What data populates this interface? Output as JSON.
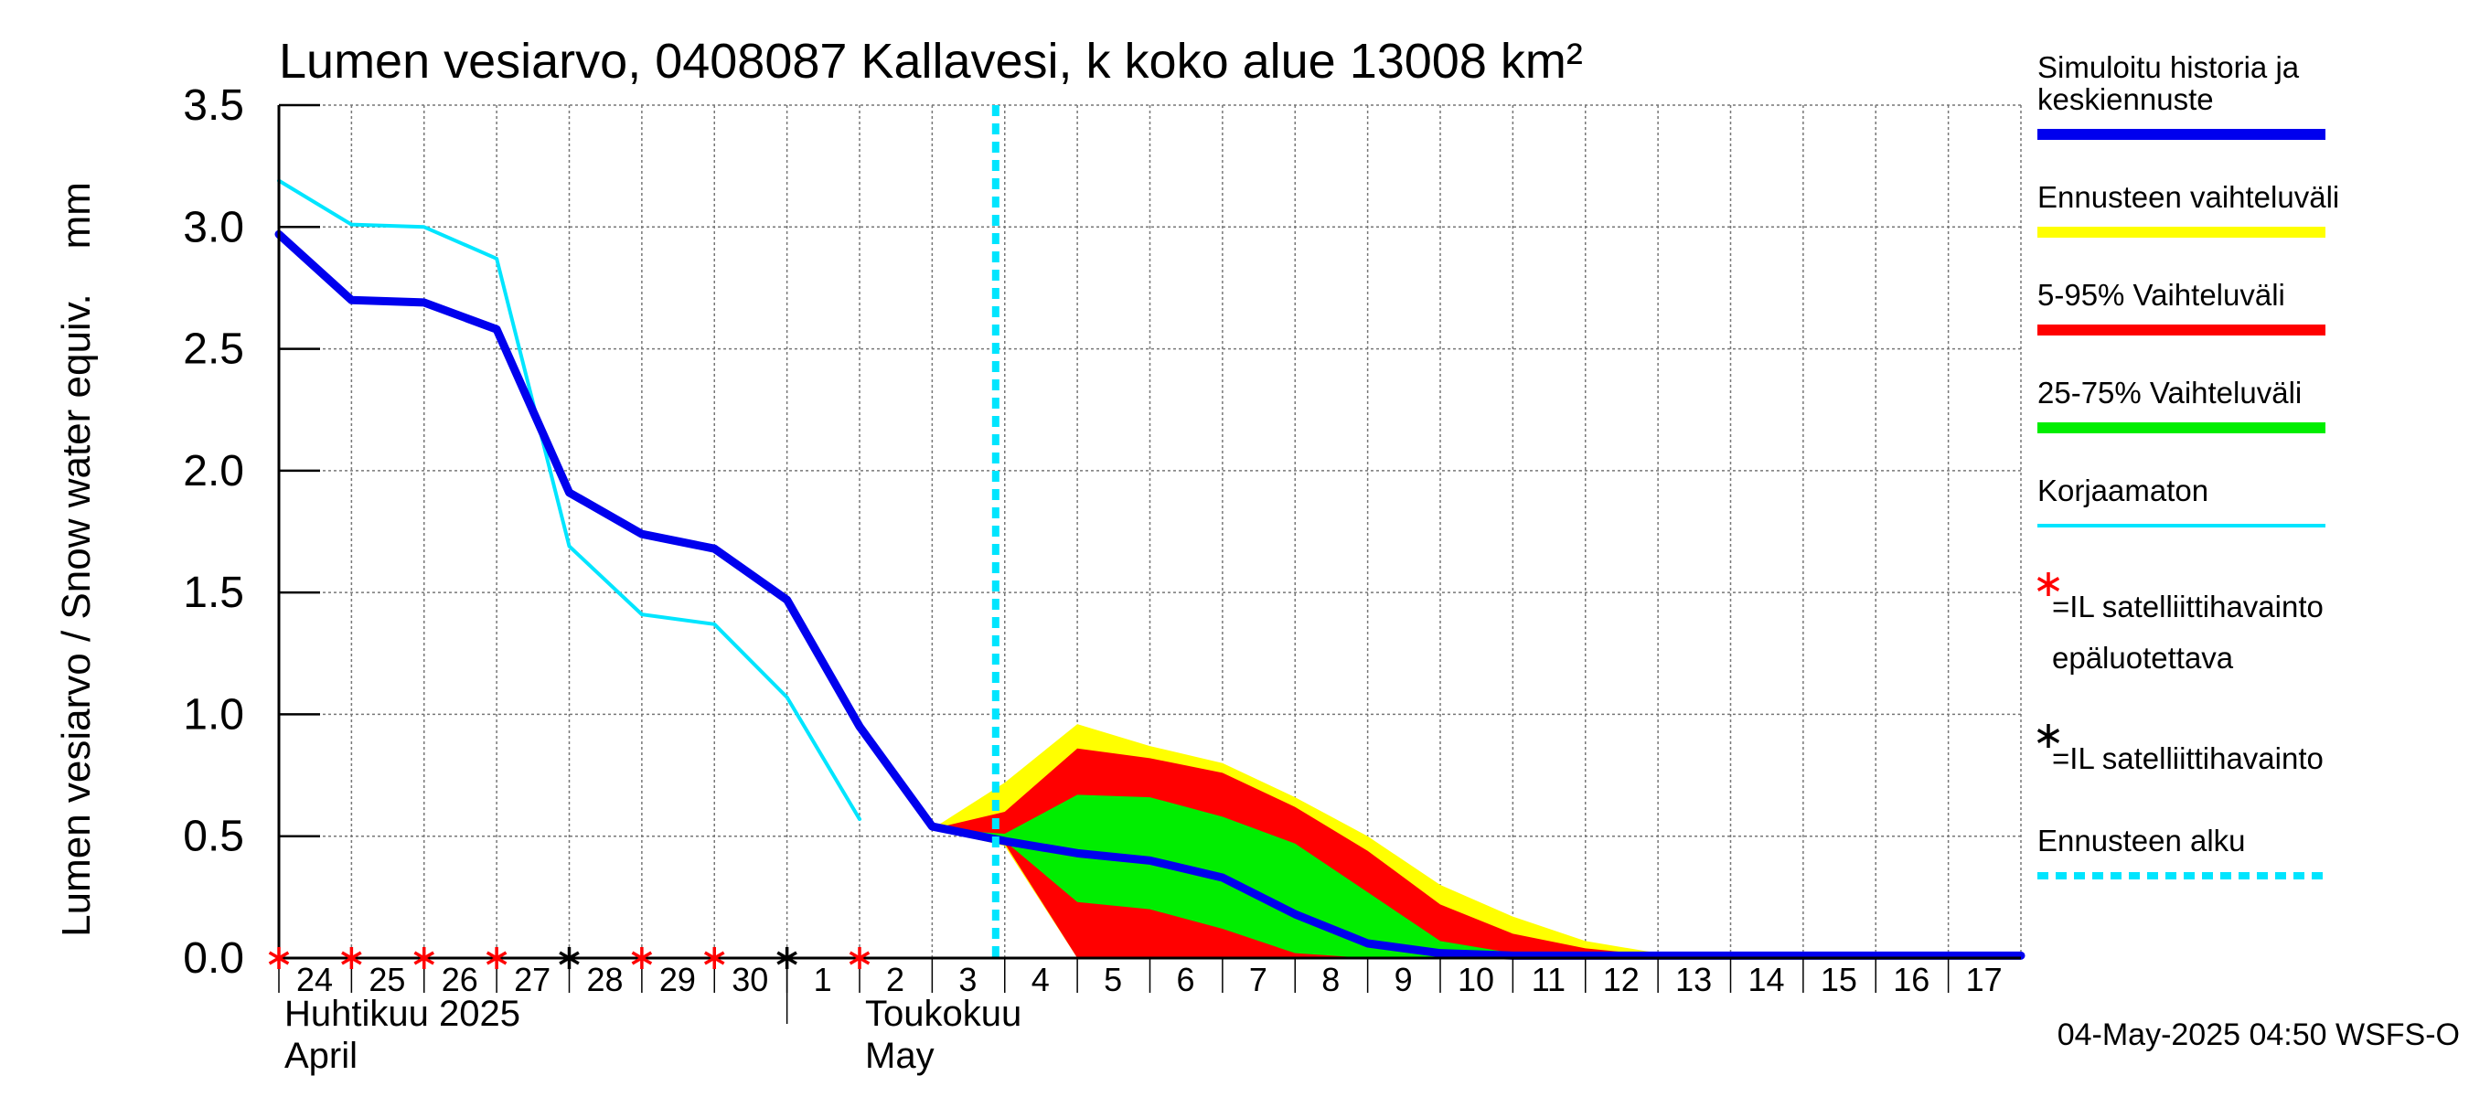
{
  "chart_data": {
    "type": "area",
    "title": "Lumen vesiarvo, 0408087 Kallavesi, k koko alue 13008 km²",
    "ylabel": "Lumen vesiarvo / Snow water equiv.    mm",
    "ylim": [
      0,
      3.5
    ],
    "yticks": [
      "0.0",
      "0.5",
      "1.0",
      "1.5",
      "2.0",
      "2.5",
      "3.0",
      "3.5"
    ],
    "x_range": [
      "2025-04-24",
      "2025-05-18"
    ],
    "x_ticks": [
      {
        "date": "2025-04-24",
        "label": "24"
      },
      {
        "date": "2025-04-25",
        "label": "25"
      },
      {
        "date": "2025-04-26",
        "label": "26"
      },
      {
        "date": "2025-04-27",
        "label": "27"
      },
      {
        "date": "2025-04-28",
        "label": "28"
      },
      {
        "date": "2025-04-29",
        "label": "29"
      },
      {
        "date": "2025-04-30",
        "label": "30"
      },
      {
        "date": "2025-05-01",
        "label": "1"
      },
      {
        "date": "2025-05-02",
        "label": "2"
      },
      {
        "date": "2025-05-03",
        "label": "3"
      },
      {
        "date": "2025-05-04",
        "label": "4"
      },
      {
        "date": "2025-05-05",
        "label": "5"
      },
      {
        "date": "2025-05-06",
        "label": "6"
      },
      {
        "date": "2025-05-07",
        "label": "7"
      },
      {
        "date": "2025-05-08",
        "label": "8"
      },
      {
        "date": "2025-05-09",
        "label": "9"
      },
      {
        "date": "2025-05-10",
        "label": "10"
      },
      {
        "date": "2025-05-11",
        "label": "11"
      },
      {
        "date": "2025-05-12",
        "label": "12"
      },
      {
        "date": "2025-05-13",
        "label": "13"
      },
      {
        "date": "2025-05-14",
        "label": "14"
      },
      {
        "date": "2025-05-15",
        "label": "15"
      },
      {
        "date": "2025-05-16",
        "label": "16"
      },
      {
        "date": "2025-05-17",
        "label": "17"
      }
    ],
    "month_labels": [
      {
        "date": "2025-04-24",
        "line1": "Huhtikuu  2025",
        "line2": "April"
      },
      {
        "date": "2025-05-02",
        "line1": "Toukokuu",
        "line2": "May"
      }
    ],
    "month_separator": "2025-05-01",
    "forecast_start": "2025-05-03T21:00",
    "grid": true,
    "legend_position": "right",
    "series": [
      {
        "name": "Ennusteen vaihteluväli",
        "kind": "band",
        "color": "#ffff00",
        "x": [
          "2025-05-03",
          "2025-05-04",
          "2025-05-05",
          "2025-05-06",
          "2025-05-07",
          "2025-05-08",
          "2025-05-09",
          "2025-05-10",
          "2025-05-11",
          "2025-05-12",
          "2025-05-13",
          "2025-05-14",
          "2025-05-15",
          "2025-05-16",
          "2025-05-17",
          "2025-05-18"
        ],
        "upper": [
          0.53,
          0.72,
          0.96,
          0.87,
          0.8,
          0.66,
          0.5,
          0.3,
          0.17,
          0.07,
          0.02,
          0.01,
          0.01,
          0.01,
          0.01,
          0.01
        ],
        "lower": [
          0.53,
          0.46,
          0,
          0,
          0,
          0,
          0,
          0,
          0,
          0,
          0,
          0,
          0,
          0,
          0,
          0
        ]
      },
      {
        "name": "5-95% Vaihteluväli",
        "kind": "band",
        "color": "#ff0000",
        "x": [
          "2025-05-03",
          "2025-05-04",
          "2025-05-05",
          "2025-05-06",
          "2025-05-07",
          "2025-05-08",
          "2025-05-09",
          "2025-05-10",
          "2025-05-11",
          "2025-05-12",
          "2025-05-13",
          "2025-05-14",
          "2025-05-15",
          "2025-05-16",
          "2025-05-17",
          "2025-05-18"
        ],
        "upper": [
          0.53,
          0.6,
          0.86,
          0.82,
          0.76,
          0.62,
          0.44,
          0.22,
          0.1,
          0.04,
          0.01,
          0.01,
          0,
          0,
          0,
          0
        ],
        "lower": [
          0.53,
          0.47,
          0,
          0,
          0,
          0,
          0,
          0,
          0,
          0,
          0,
          0,
          0,
          0,
          0,
          0
        ]
      },
      {
        "name": "25-75% Vaihteluväli",
        "kind": "band",
        "color": "#00ee00",
        "x": [
          "2025-05-03",
          "2025-05-04",
          "2025-05-05",
          "2025-05-06",
          "2025-05-07",
          "2025-05-08",
          "2025-05-09",
          "2025-05-10",
          "2025-05-11",
          "2025-05-12",
          "2025-05-13",
          "2025-05-14",
          "2025-05-15",
          "2025-05-16",
          "2025-05-17",
          "2025-05-18"
        ],
        "upper": [
          0.53,
          0.51,
          0.67,
          0.66,
          0.58,
          0.47,
          0.27,
          0.07,
          0.02,
          0.01,
          0,
          0,
          0,
          0,
          0,
          0
        ],
        "lower": [
          0.53,
          0.48,
          0.23,
          0.2,
          0.12,
          0.02,
          0,
          0,
          0,
          0,
          0,
          0,
          0,
          0,
          0,
          0
        ]
      },
      {
        "name": "Korjaamaton",
        "kind": "line",
        "color": "#00e5ff",
        "x": [
          "2025-04-24",
          "2025-04-25",
          "2025-04-26",
          "2025-04-27",
          "2025-04-28",
          "2025-04-29",
          "2025-04-30",
          "2025-05-01",
          "2025-05-02"
        ],
        "values": [
          3.19,
          3.01,
          3.0,
          2.87,
          1.69,
          1.41,
          1.37,
          1.07,
          0.57
        ]
      },
      {
        "name": "Simuloitu historia ja keskiennuste",
        "kind": "line",
        "color": "#0000ee",
        "x": [
          "2025-04-24",
          "2025-04-25",
          "2025-04-26",
          "2025-04-27",
          "2025-04-28",
          "2025-04-29",
          "2025-04-30",
          "2025-05-01",
          "2025-05-02",
          "2025-05-03",
          "2025-05-04",
          "2025-05-05",
          "2025-05-06",
          "2025-05-07",
          "2025-05-08",
          "2025-05-09",
          "2025-05-10",
          "2025-05-11",
          "2025-05-12",
          "2025-05-13",
          "2025-05-14",
          "2025-05-15",
          "2025-05-16",
          "2025-05-17",
          "2025-05-18"
        ],
        "values": [
          2.97,
          2.7,
          2.69,
          2.58,
          1.91,
          1.74,
          1.68,
          1.47,
          0.95,
          0.54,
          0.48,
          0.43,
          0.4,
          0.33,
          0.18,
          0.06,
          0.02,
          0.01,
          0.01,
          0.01,
          0.01,
          0.01,
          0.01,
          0.01,
          0.01
        ]
      }
    ],
    "satellite_observations": [
      {
        "date": "2025-04-24",
        "value": 0,
        "kind": "unreliable"
      },
      {
        "date": "2025-04-25",
        "value": 0,
        "kind": "unreliable"
      },
      {
        "date": "2025-04-26",
        "value": 0,
        "kind": "unreliable"
      },
      {
        "date": "2025-04-27",
        "value": 0,
        "kind": "unreliable"
      },
      {
        "date": "2025-04-28",
        "value": 0,
        "kind": "reliable"
      },
      {
        "date": "2025-04-29",
        "value": 0,
        "kind": "unreliable"
      },
      {
        "date": "2025-04-30",
        "value": 0,
        "kind": "unreliable"
      },
      {
        "date": "2025-05-01",
        "value": 0,
        "kind": "reliable"
      },
      {
        "date": "2025-05-02",
        "value": 0,
        "kind": "unreliable"
      }
    ],
    "legend": [
      {
        "kind": "line",
        "lines": [
          "Simuloitu historia ja",
          "keskiennuste"
        ],
        "color": "#0000ee"
      },
      {
        "kind": "line",
        "lines": [
          "Ennusteen vaihteluväli"
        ],
        "color": "#ffff00"
      },
      {
        "kind": "line",
        "lines": [
          "5-95% Vaihteluväli"
        ],
        "color": "#ff0000"
      },
      {
        "kind": "line",
        "lines": [
          "25-75% Vaihteluväli"
        ],
        "color": "#00ee00"
      },
      {
        "kind": "thin-line",
        "lines": [
          "Korjaamaton"
        ],
        "color": "#00e5ff"
      },
      {
        "kind": "marker",
        "lines": [
          "=IL satelliittihavainto",
          "epäluotettava"
        ],
        "color": "#ff0000"
      },
      {
        "kind": "marker",
        "lines": [
          "=IL satelliittihavainto"
        ],
        "color": "#000000"
      },
      {
        "kind": "dashed",
        "lines": [
          "Ennusteen alku"
        ],
        "color": "#00e5ff"
      }
    ],
    "footer": "04-May-2025 04:50 WSFS-O"
  }
}
